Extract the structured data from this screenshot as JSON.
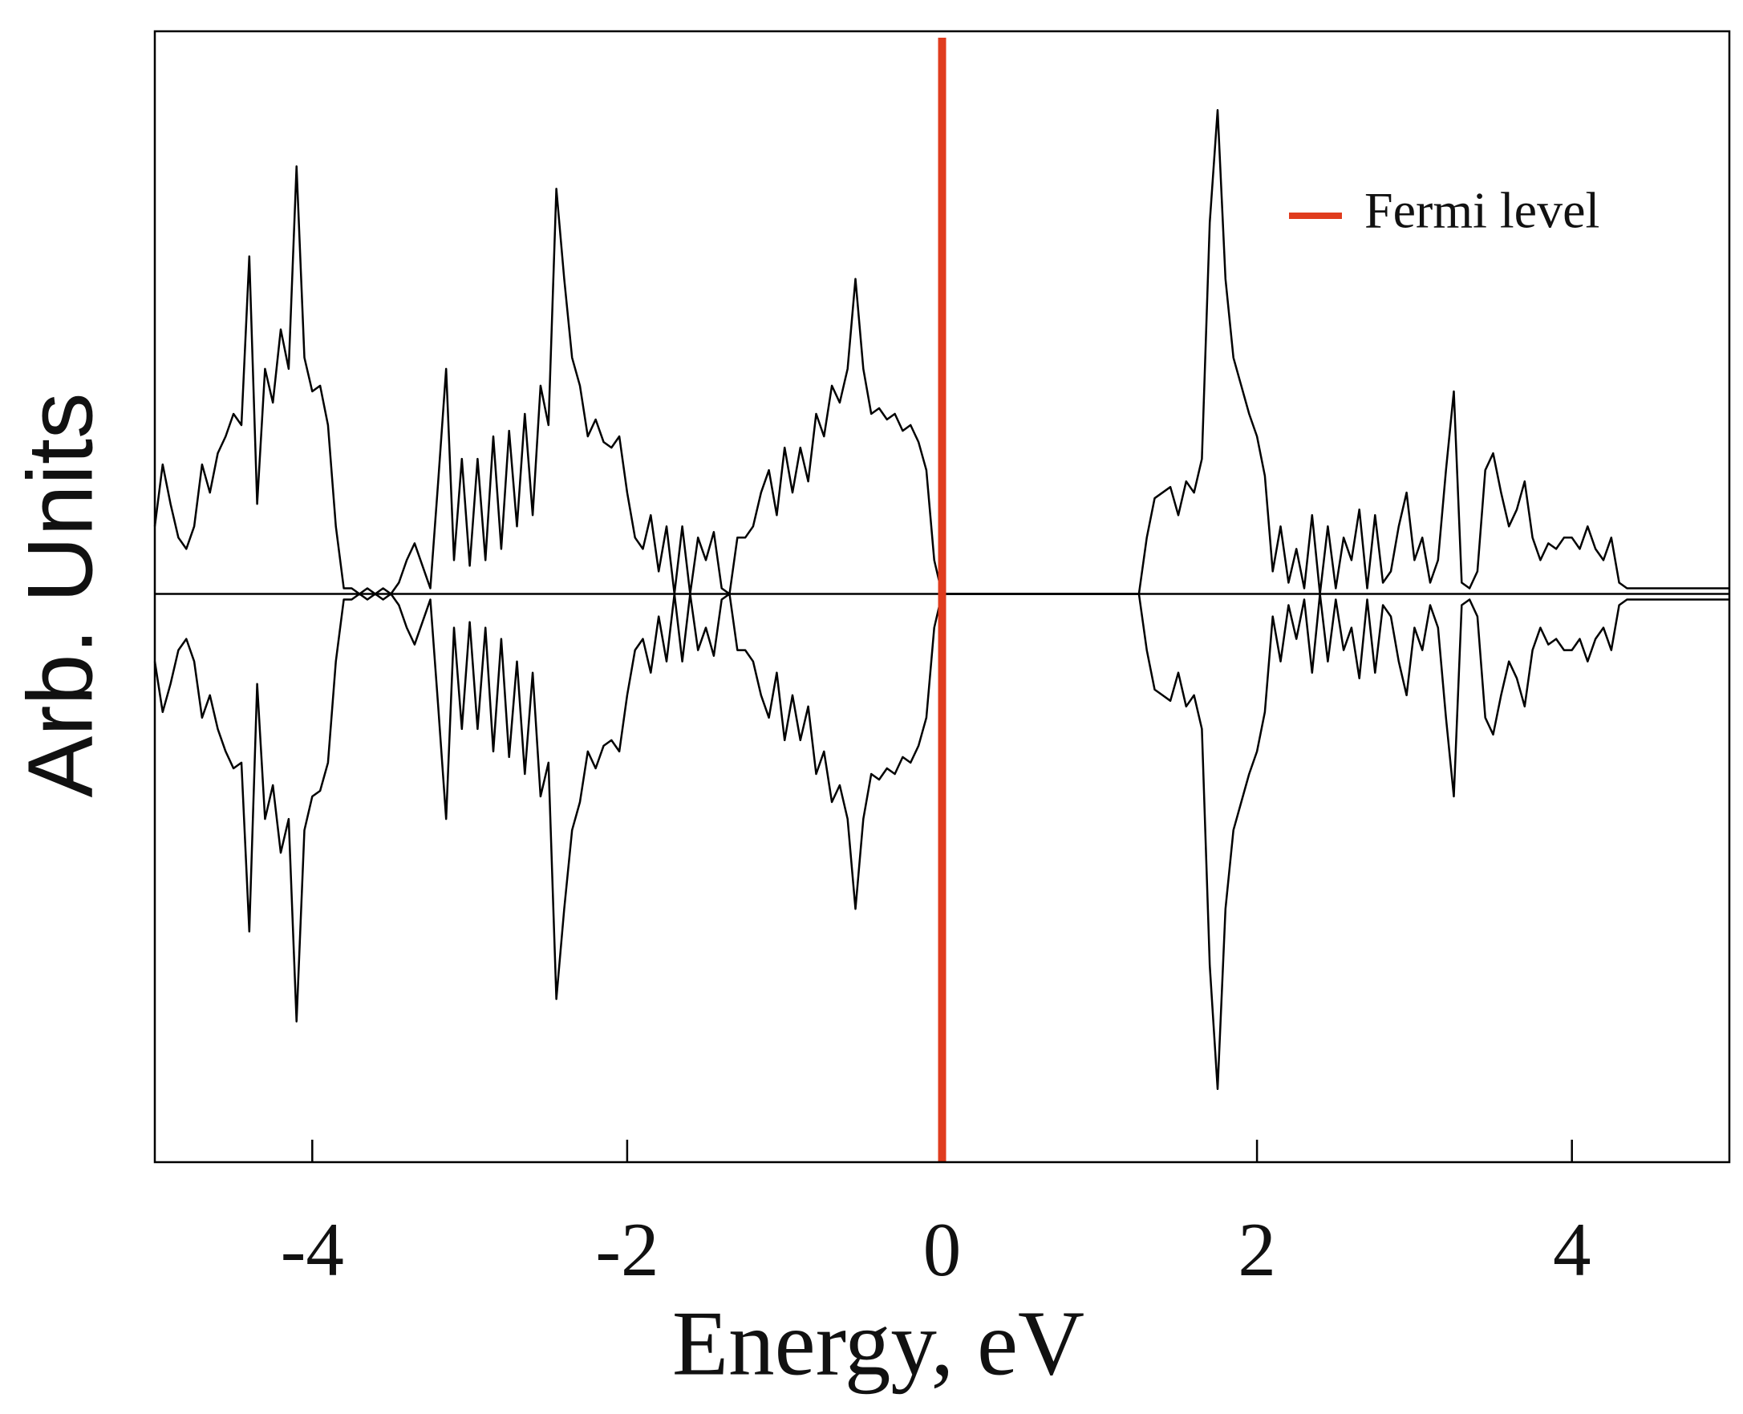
{
  "chart_data": {
    "type": "line",
    "xlabel": "Energy, eV",
    "ylabel": "Arb. Units",
    "xlim": [
      -5,
      5
    ],
    "xticks": [
      -4,
      -2,
      0,
      2,
      4
    ],
    "ylim": [
      -1.01,
      1.0
    ],
    "x": [
      -5,
      -4.95,
      -4.9,
      -4.85,
      -4.8,
      -4.75,
      -4.7,
      -4.65,
      -4.6,
      -4.55,
      -4.5,
      -4.45,
      -4.4,
      -4.35,
      -4.3,
      -4.25,
      -4.2,
      -4.15,
      -4.1,
      -4.05,
      -4,
      -3.95,
      -3.9,
      -3.85,
      -3.8,
      -3.75,
      -3.7,
      -3.65,
      -3.6,
      -3.55,
      -3.5,
      -3.45,
      -3.4,
      -3.35,
      -3.3,
      -3.25,
      -3.2,
      -3.15,
      -3.1,
      -3.05,
      -3,
      -2.95,
      -2.9,
      -2.85,
      -2.8,
      -2.75,
      -2.7,
      -2.65,
      -2.6,
      -2.55,
      -2.5,
      -2.45,
      -2.4,
      -2.35,
      -2.3,
      -2.25,
      -2.2,
      -2.15,
      -2.1,
      -2.05,
      -2,
      -1.95,
      -1.9,
      -1.85,
      -1.8,
      -1.75,
      -1.7,
      -1.65,
      -1.6,
      -1.55,
      -1.5,
      -1.45,
      -1.4,
      -1.35,
      -1.3,
      -1.25,
      -1.2,
      -1.15,
      -1.1,
      -1.05,
      -1,
      -0.95,
      -0.9,
      -0.85,
      -0.8,
      -0.75,
      -0.7,
      -0.65,
      -0.6,
      -0.55,
      -0.5,
      -0.45,
      -0.4,
      -0.35,
      -0.3,
      -0.25,
      -0.2,
      -0.15,
      -0.1,
      -0.05,
      0,
      0.05,
      0.1,
      0.15,
      0.2,
      0.25,
      0.3,
      0.35,
      0.4,
      0.45,
      0.5,
      0.55,
      0.6,
      0.65,
      0.7,
      0.75,
      0.8,
      0.85,
      0.9,
      0.95,
      1,
      1.05,
      1.1,
      1.15,
      1.2,
      1.25,
      1.3,
      1.35,
      1.4,
      1.45,
      1.5,
      1.55,
      1.6,
      1.65,
      1.7,
      1.75,
      1.8,
      1.85,
      1.9,
      1.95,
      2,
      2.05,
      2.1,
      2.15,
      2.2,
      2.25,
      2.3,
      2.35,
      2.4,
      2.45,
      2.5,
      2.55,
      2.6,
      2.65,
      2.7,
      2.75,
      2.8,
      2.85,
      2.9,
      2.95,
      3,
      3.05,
      3.1,
      3.15,
      3.2,
      3.25,
      3.3,
      3.35,
      3.4,
      3.45,
      3.5,
      3.55,
      3.6,
      3.65,
      3.7,
      3.75,
      3.8,
      3.85,
      3.9,
      3.95,
      4,
      4.05,
      4.1,
      4.15,
      4.2,
      4.25,
      4.3,
      4.35,
      4.4,
      4.45,
      4.5,
      4.55,
      4.6,
      4.65,
      4.7,
      4.75,
      4.8,
      4.85,
      4.9,
      4.95,
      5
    ],
    "series": [
      {
        "color": "#000000",
        "values": [
          0.12,
          0.23,
          0.16,
          0.1,
          0.08,
          0.12,
          0.23,
          0.18,
          0.25,
          0.28,
          0.32,
          0.3,
          0.6,
          0.16,
          0.4,
          0.34,
          0.47,
          0.4,
          0.76,
          0.42,
          0.36,
          0.37,
          0.3,
          0.12,
          0.01,
          0.01,
          0,
          0.01,
          0,
          0.01,
          0,
          0.02,
          0.06,
          0.09,
          0.05,
          0.01,
          0.2,
          0.4,
          0.06,
          0.24,
          0.05,
          0.24,
          0.06,
          0.28,
          0.08,
          0.29,
          0.12,
          0.32,
          0.14,
          0.37,
          0.3,
          0.72,
          0.56,
          0.42,
          0.37,
          0.28,
          0.31,
          0.27,
          0.26,
          0.28,
          0.18,
          0.1,
          0.08,
          0.14,
          0.04,
          0.12,
          0,
          0.12,
          0,
          0.1,
          0.06,
          0.11,
          0.01,
          0,
          0.1,
          0.1,
          0.12,
          0.18,
          0.22,
          0.14,
          0.26,
          0.18,
          0.26,
          0.2,
          0.32,
          0.28,
          0.37,
          0.34,
          0.4,
          0.56,
          0.4,
          0.32,
          0.33,
          0.31,
          0.32,
          0.29,
          0.3,
          0.27,
          0.22,
          0.06,
          0,
          0,
          0,
          0,
          0,
          0,
          0,
          0,
          0,
          0,
          0,
          0,
          0,
          0,
          0,
          0,
          0,
          0,
          0,
          0,
          0,
          0,
          0,
          0,
          0,
          0,
          0.1,
          0.17,
          0.18,
          0.19,
          0.14,
          0.2,
          0.18,
          0.24,
          0.66,
          0.86,
          0.56,
          0.42,
          0.37,
          0.32,
          0.28,
          0.21,
          0.04,
          0.12,
          0.02,
          0.08,
          0.01,
          0.14,
          0,
          0.12,
          0.01,
          0.1,
          0.06,
          0.15,
          0.01,
          0.14,
          0.02,
          0.04,
          0.12,
          0.18,
          0.06,
          0.1,
          0.02,
          0.06,
          0.22,
          0.36,
          0.02,
          0.01,
          0.04,
          0.22,
          0.25,
          0.18,
          0.12,
          0.15,
          0.2,
          0.1,
          0.06,
          0.09,
          0.08,
          0.1,
          0.1,
          0.08,
          0.12,
          0.08,
          0.06,
          0.1,
          0.02,
          0.01,
          0.01,
          0.01,
          0.01,
          0.01,
          0.01,
          0.01,
          0.01,
          0.01,
          0.01,
          0.01,
          0.01,
          0.01,
          0.01
        ]
      },
      {
        "color": "#000000",
        "values": [
          -0.12,
          -0.21,
          -0.16,
          -0.1,
          -0.08,
          -0.12,
          -0.22,
          -0.18,
          -0.24,
          -0.28,
          -0.31,
          -0.3,
          -0.6,
          -0.16,
          -0.4,
          -0.34,
          -0.46,
          -0.4,
          -0.76,
          -0.42,
          -0.36,
          -0.35,
          -0.3,
          -0.12,
          -0.01,
          -0.01,
          0,
          -0.01,
          0,
          -0.01,
          0,
          -0.02,
          -0.06,
          -0.09,
          -0.05,
          -0.01,
          -0.2,
          -0.4,
          -0.06,
          -0.24,
          -0.05,
          -0.24,
          -0.06,
          -0.28,
          -0.08,
          -0.29,
          -0.12,
          -0.32,
          -0.14,
          -0.36,
          -0.3,
          -0.72,
          -0.56,
          -0.42,
          -0.37,
          -0.28,
          -0.31,
          -0.27,
          -0.26,
          -0.28,
          -0.18,
          -0.1,
          -0.08,
          -0.14,
          -0.04,
          -0.12,
          0,
          -0.12,
          0,
          -0.1,
          -0.06,
          -0.11,
          -0.01,
          0,
          -0.1,
          -0.1,
          -0.12,
          -0.18,
          -0.22,
          -0.14,
          -0.26,
          -0.18,
          -0.26,
          -0.2,
          -0.32,
          -0.28,
          -0.37,
          -0.34,
          -0.4,
          -0.56,
          -0.4,
          -0.32,
          -0.33,
          -0.31,
          -0.32,
          -0.29,
          -0.3,
          -0.27,
          -0.22,
          -0.06,
          0,
          0,
          0,
          0,
          0,
          0,
          0,
          0,
          0,
          0,
          0,
          0,
          0,
          0,
          0,
          0,
          0,
          0,
          0,
          0,
          0,
          0,
          0,
          0,
          0,
          0,
          -0.1,
          -0.17,
          -0.18,
          -0.19,
          -0.14,
          -0.2,
          -0.18,
          -0.24,
          -0.66,
          -0.88,
          -0.56,
          -0.42,
          -0.37,
          -0.32,
          -0.28,
          -0.21,
          -0.04,
          -0.12,
          -0.02,
          -0.08,
          -0.01,
          -0.14,
          0,
          -0.12,
          -0.01,
          -0.1,
          -0.06,
          -0.15,
          -0.01,
          -0.14,
          -0.02,
          -0.04,
          -0.12,
          -0.18,
          -0.06,
          -0.1,
          -0.02,
          -0.06,
          -0.22,
          -0.36,
          -0.02,
          -0.01,
          -0.04,
          -0.22,
          -0.25,
          -0.18,
          -0.12,
          -0.15,
          -0.2,
          -0.1,
          -0.06,
          -0.09,
          -0.08,
          -0.1,
          -0.1,
          -0.08,
          -0.12,
          -0.08,
          -0.06,
          -0.1,
          -0.02,
          -0.01,
          -0.01,
          -0.01,
          -0.01,
          -0.01,
          -0.01,
          -0.01,
          -0.01,
          -0.01,
          -0.01,
          -0.01,
          -0.01,
          -0.01,
          -0.01
        ]
      }
    ],
    "vlines": [
      {
        "x": 0,
        "label": "Fermi level",
        "color": "#e03c1e"
      }
    ],
    "legend": "upper right"
  }
}
